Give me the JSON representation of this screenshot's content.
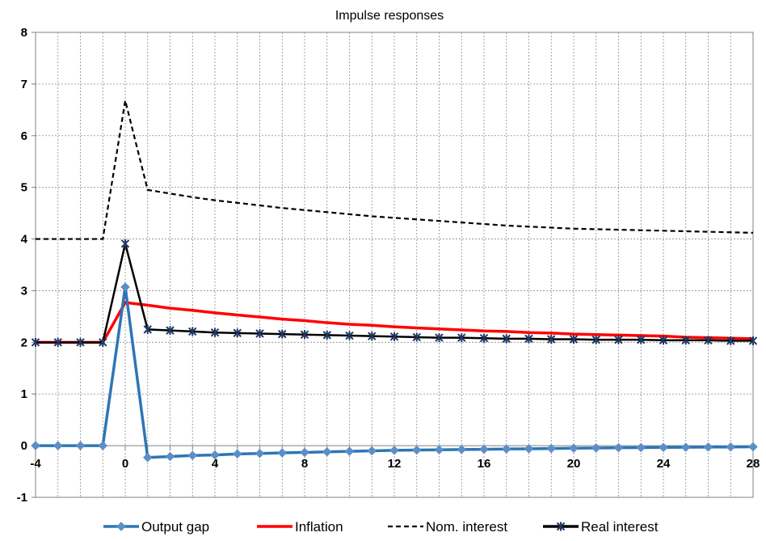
{
  "chart_data": {
    "type": "line",
    "title": "Impulse responses",
    "xlabel": "",
    "ylabel": "",
    "xlim": [
      -4,
      28
    ],
    "ylim": [
      -1,
      8
    ],
    "x_ticks": [
      -4,
      0,
      4,
      8,
      12,
      16,
      20,
      24,
      28
    ],
    "y_ticks": [
      -1,
      0,
      1,
      2,
      3,
      4,
      5,
      6,
      7,
      8
    ],
    "grid": true,
    "legend_position": "bottom",
    "x": [
      -4,
      -3,
      -2,
      -1,
      0,
      1,
      2,
      3,
      4,
      5,
      6,
      7,
      8,
      9,
      10,
      11,
      12,
      13,
      14,
      15,
      16,
      17,
      18,
      19,
      20,
      21,
      22,
      23,
      24,
      25,
      26,
      27,
      28
    ],
    "series": [
      {
        "name": "Output gap",
        "color": "#2e75b6",
        "style": "solid",
        "marker": "diamond",
        "values": [
          0,
          0,
          0,
          0,
          3.07,
          -0.23,
          -0.21,
          -0.19,
          -0.18,
          -0.16,
          -0.15,
          -0.14,
          -0.13,
          -0.12,
          -0.11,
          -0.1,
          -0.09,
          -0.085,
          -0.08,
          -0.075,
          -0.07,
          -0.065,
          -0.06,
          -0.055,
          -0.05,
          -0.045,
          -0.04,
          -0.037,
          -0.034,
          -0.031,
          -0.028,
          -0.025,
          -0.022
        ]
      },
      {
        "name": "Inflation",
        "color": "#ff0000",
        "style": "solid",
        "marker": "none",
        "values": [
          2,
          2,
          2,
          2,
          2.77,
          2.72,
          2.66,
          2.62,
          2.57,
          2.53,
          2.49,
          2.45,
          2.42,
          2.38,
          2.35,
          2.33,
          2.3,
          2.28,
          2.26,
          2.24,
          2.22,
          2.21,
          2.19,
          2.18,
          2.16,
          2.15,
          2.14,
          2.13,
          2.12,
          2.1,
          2.09,
          2.08,
          2.07
        ]
      },
      {
        "name": "Nom. interest",
        "color": "#000000",
        "style": "dashed",
        "marker": "none",
        "values": [
          4,
          4,
          4,
          4,
          6.68,
          4.95,
          4.88,
          4.81,
          4.75,
          4.7,
          4.65,
          4.6,
          4.56,
          4.52,
          4.48,
          4.44,
          4.41,
          4.38,
          4.35,
          4.32,
          4.29,
          4.26,
          4.24,
          4.22,
          4.2,
          4.19,
          4.18,
          4.17,
          4.16,
          4.15,
          4.14,
          4.13,
          4.12
        ]
      },
      {
        "name": "Real interest",
        "color": "#000000",
        "style": "solid",
        "marker": "star",
        "marker_color": "#1f3864",
        "values": [
          2,
          2,
          2,
          2,
          3.91,
          2.25,
          2.23,
          2.21,
          2.19,
          2.18,
          2.17,
          2.16,
          2.15,
          2.14,
          2.13,
          2.12,
          2.11,
          2.1,
          2.09,
          2.09,
          2.08,
          2.07,
          2.07,
          2.06,
          2.06,
          2.05,
          2.05,
          2.05,
          2.04,
          2.04,
          2.04,
          2.03,
          2.03
        ]
      }
    ]
  }
}
